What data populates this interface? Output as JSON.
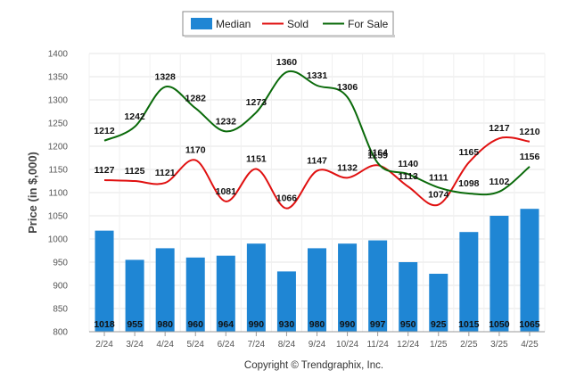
{
  "chart_data": {
    "type": "bar",
    "categories": [
      "2/24",
      "3/24",
      "4/24",
      "5/24",
      "6/24",
      "7/24",
      "8/24",
      "9/24",
      "10/24",
      "11/24",
      "12/24",
      "1/25",
      "2/25",
      "3/25",
      "4/25"
    ],
    "series": [
      {
        "name": "Median",
        "kind": "bar",
        "color": "#1f86d4",
        "values": [
          1018,
          955,
          980,
          960,
          964,
          990,
          930,
          980,
          990,
          997,
          950,
          925,
          1015,
          1050,
          1065
        ]
      },
      {
        "name": "Sold",
        "kind": "line",
        "color": "#e01010",
        "values": [
          1127,
          1125,
          1121,
          1170,
          1081,
          1151,
          1066,
          1147,
          1132,
          1159,
          1113,
          1074,
          1165,
          1217,
          1210
        ]
      },
      {
        "name": "For Sale",
        "kind": "line",
        "color": "#0a6a0a",
        "values": [
          1212,
          1242,
          1328,
          1282,
          1232,
          1273,
          1360,
          1331,
          1306,
          1164,
          1140,
          1111,
          1098,
          1102,
          1156
        ]
      }
    ],
    "ylabel": "Price (in $,000)",
    "ylim": [
      800,
      1400
    ],
    "yticks": [
      800,
      850,
      900,
      950,
      1000,
      1050,
      1100,
      1150,
      1200,
      1250,
      1300,
      1350,
      1400
    ],
    "grid": true,
    "legend": "top-center"
  },
  "footer": "Copyright © Trendgraphix, Inc."
}
